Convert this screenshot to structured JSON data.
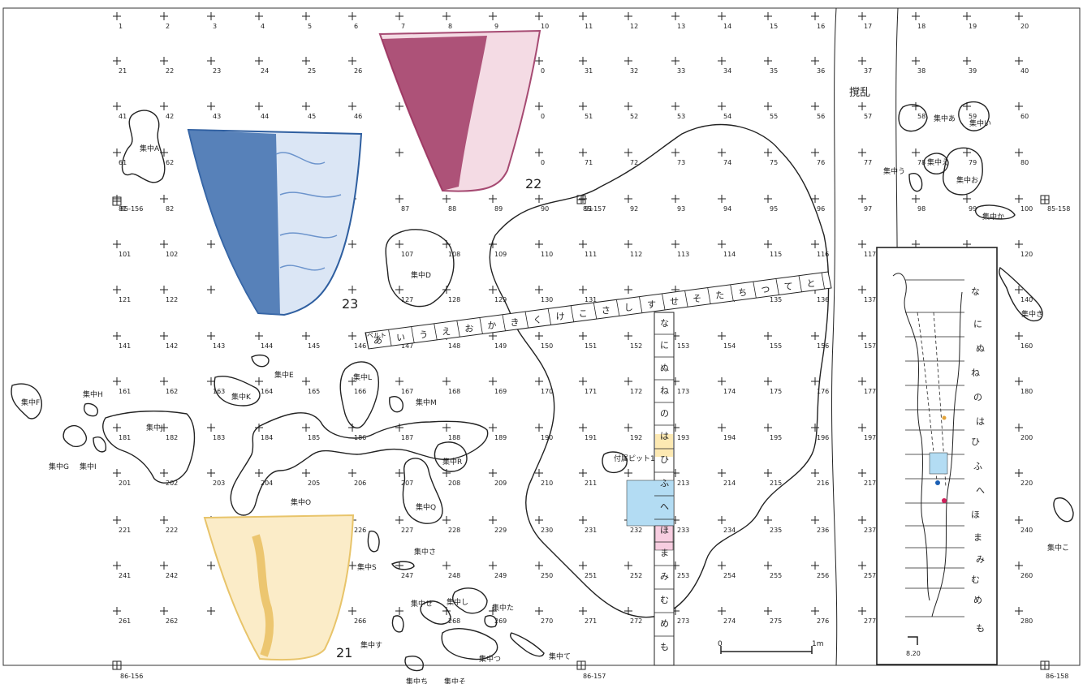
{
  "grid": {
    "rows": [
      [
        "1",
        "2",
        "3",
        "4",
        "5",
        "6",
        "7",
        "8",
        "9",
        "10",
        "11",
        "12",
        "13",
        "14",
        "15",
        "16",
        "17",
        "18",
        "19",
        "20"
      ],
      [
        "21",
        "22",
        "23",
        "24",
        "25",
        "26",
        "",
        "",
        "",
        "0",
        "31",
        "32",
        "33",
        "34",
        "35",
        "36",
        "37",
        "38",
        "39",
        "40"
      ],
      [
        "41",
        "42",
        "43",
        "44",
        "45",
        "46",
        "",
        "",
        "",
        "0",
        "51",
        "52",
        "53",
        "54",
        "55",
        "56",
        "57",
        "58",
        "59",
        "60"
      ],
      [
        "61",
        "62",
        "",
        "",
        "",
        "",
        "",
        "",
        "",
        "0",
        "71",
        "72",
        "73",
        "74",
        "75",
        "76",
        "77",
        "78",
        "79",
        "80"
      ],
      [
        "81",
        "82",
        "",
        "",
        "",
        "",
        "87",
        "88",
        "89",
        "90",
        "91",
        "92",
        "93",
        "94",
        "95",
        "96",
        "97",
        "98",
        "99",
        "100"
      ],
      [
        "101",
        "102",
        "",
        "",
        "",
        "",
        "107",
        "108",
        "109",
        "110",
        "111",
        "112",
        "113",
        "114",
        "115",
        "116",
        "117",
        "",
        "",
        "120"
      ],
      [
        "121",
        "122",
        "",
        "",
        "",
        "",
        "127",
        "128",
        "129",
        "130",
        "131",
        "",
        "133",
        "134",
        "135",
        "136",
        "137",
        "",
        "",
        "140"
      ],
      [
        "141",
        "142",
        "143",
        "144",
        "145",
        "146",
        "147",
        "148",
        "149",
        "150",
        "151",
        "152",
        "153",
        "154",
        "155",
        "156",
        "157",
        "",
        "",
        "160"
      ],
      [
        "161",
        "162",
        "163",
        "164",
        "165",
        "166",
        "167",
        "168",
        "169",
        "170",
        "171",
        "172",
        "173",
        "174",
        "175",
        "176",
        "177",
        "",
        "",
        "180"
      ],
      [
        "181",
        "182",
        "183",
        "184",
        "185",
        "186",
        "187",
        "188",
        "189",
        "190",
        "191",
        "192",
        "193",
        "194",
        "195",
        "196",
        "197",
        "",
        "",
        "200"
      ],
      [
        "201",
        "202",
        "203",
        "204",
        "205",
        "206",
        "207",
        "208",
        "209",
        "210",
        "211",
        "212",
        "213",
        "214",
        "215",
        "216",
        "217",
        "",
        "",
        "220"
      ],
      [
        "221",
        "222",
        "",
        "",
        "",
        "226",
        "227",
        "228",
        "229",
        "230",
        "231",
        "232",
        "233",
        "234",
        "235",
        "236",
        "237",
        "",
        "",
        "240"
      ],
      [
        "241",
        "242",
        "",
        "",
        "",
        "",
        "247",
        "248",
        "249",
        "250",
        "251",
        "252",
        "253",
        "254",
        "255",
        "256",
        "257",
        "",
        "",
        "260"
      ],
      [
        "261",
        "262",
        "",
        "",
        "",
        "266",
        "",
        "268",
        "269",
        "270",
        "271",
        "272",
        "273",
        "274",
        "275",
        "276",
        "277",
        "",
        "",
        "280"
      ]
    ]
  },
  "reference_points": [
    {
      "label": "85-156"
    },
    {
      "label": "85-157"
    },
    {
      "label": "85-158"
    },
    {
      "label": "86-156"
    },
    {
      "label": "86-157"
    },
    {
      "label": "86-158"
    }
  ],
  "concentrations": [
    "集中A",
    "集中D",
    "集中E",
    "集中K",
    "集中F",
    "集中H",
    "集中J",
    "集中G",
    "集中I",
    "集中L",
    "集中M",
    "集中O",
    "集中R",
    "集中Q",
    "集中S",
    "集中さ",
    "集中せ",
    "集中し",
    "集中た",
    "集中す",
    "集中つ",
    "集中て",
    "集中ち",
    "集中そ",
    "集中あ",
    "集中い",
    "集中う",
    "集中え",
    "集中お",
    "集中か",
    "集中き",
    "集中こ"
  ],
  "belt": {
    "label": "ベルト",
    "diagonal_kana": [
      "あ",
      "い",
      "う",
      "え",
      "お",
      "か",
      "き",
      "く",
      "け",
      "こ",
      "さ",
      "し",
      "す",
      "せ",
      "そ",
      "た",
      "ち",
      "つ",
      "て",
      "と"
    ],
    "vertical_kana": [
      "な",
      "に",
      "ぬ",
      "ね",
      "の",
      "は",
      "ひ",
      "ふ",
      "へ",
      "ほ",
      "ま",
      "み",
      "む",
      "め",
      "も"
    ]
  },
  "pit_label": "付属ピット1",
  "disturbance_label": "撹乱",
  "figure_numbers": [
    "21",
    "22",
    "23"
  ],
  "scale": {
    "start": "0",
    "end": "1m"
  },
  "inset": {
    "kana": [
      "な",
      "に",
      "ぬ",
      "ね",
      "の",
      "は",
      "ひ",
      "ふ",
      "へ",
      "ほ",
      "ま",
      "み",
      "む",
      "め",
      "も"
    ],
    "scale_label": "8.20"
  },
  "colors": {
    "blue_highlight": "#b3dcf3",
    "pink_highlight": "#f7cde0",
    "yellow_highlight": "#fde9b2",
    "pottery_blue": "#3f6fae",
    "pottery_red": "#9b2f5c",
    "pottery_yellow": "#e5b64a"
  }
}
